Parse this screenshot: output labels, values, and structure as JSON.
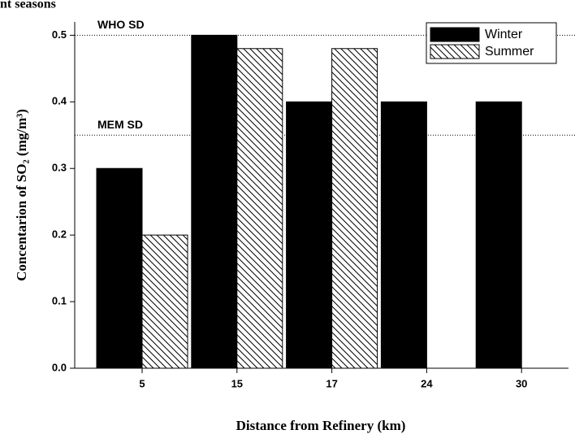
{
  "chart_data": {
    "type": "bar",
    "title": "nt seasons",
    "x_label": "Distance from Refinery (km)",
    "y_label": "Concentarion of SO₂ (mg/m³)",
    "categories": [
      "5",
      "15",
      "17",
      "24",
      "30"
    ],
    "series": [
      {
        "name": "Winter",
        "color": "#000000",
        "pattern": "solid",
        "values": [
          0.3,
          0.5,
          0.4,
          0.4,
          0.4
        ]
      },
      {
        "name": "Summer",
        "color": "#000000",
        "pattern": "hatch",
        "values": [
          0.2,
          0.48,
          0.48,
          null,
          null
        ]
      }
    ],
    "ylim": [
      0,
      0.52
    ],
    "yticks": [
      {
        "value": 0,
        "label": "0.0"
      },
      0.1,
      0.2,
      0.3,
      0.4,
      0.5
    ],
    "reference_lines": [
      {
        "label": "WHO SD",
        "value": 0.5
      },
      {
        "label": "MEM SD",
        "value": 0.35
      }
    ],
    "legend": "upper right"
  }
}
